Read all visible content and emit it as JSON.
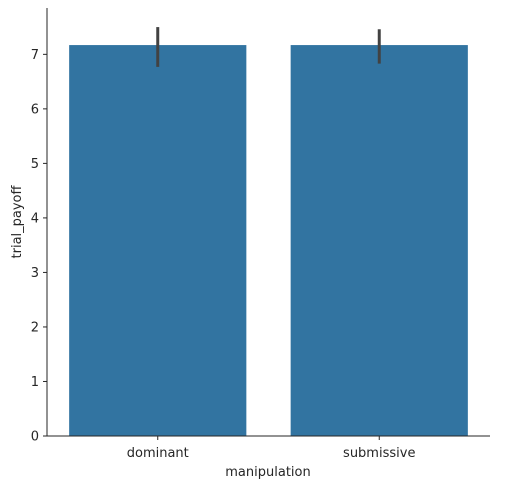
{
  "chart_data": {
    "type": "bar",
    "categories": [
      "dominant",
      "submissive"
    ],
    "values": [
      7.17,
      7.17
    ],
    "error_bars": [
      {
        "low": 6.77,
        "high": 7.5
      },
      {
        "low": 6.83,
        "high": 7.46
      }
    ],
    "xlabel": "manipulation",
    "ylabel": "trial_payoff",
    "ylim": [
      0,
      7.85
    ],
    "yticks": [
      "0",
      "1",
      "2",
      "3",
      "4",
      "5",
      "6",
      "7"
    ],
    "grid": false,
    "colors": {
      "bar": "#3274a1",
      "error": "#424242",
      "axis": "#262626"
    }
  }
}
